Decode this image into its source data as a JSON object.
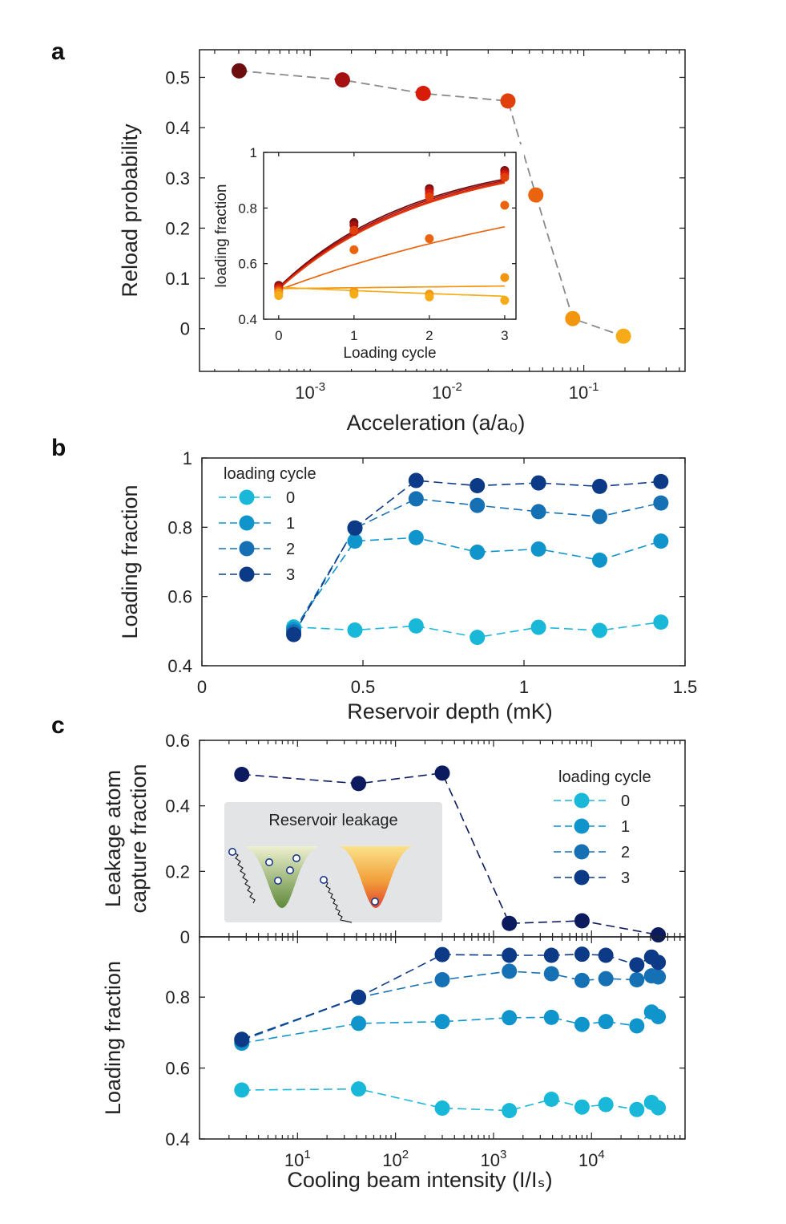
{
  "panel_labels": {
    "a": "a",
    "b": "b",
    "c": "c"
  },
  "chart_data": [
    {
      "id": "a-main",
      "type": "scatter",
      "xscale": "log",
      "xlim": [
        0.000155,
        0.55
      ],
      "ylim": [
        -0.085,
        0.555
      ],
      "xlabel": "Acceleration (a/a₀)",
      "ylabel": "Reload probability",
      "xticks": [
        {
          "v": 0.001,
          "b": "10",
          "e": "-3"
        },
        {
          "v": 0.01,
          "b": "10",
          "e": "-2"
        },
        {
          "v": 0.1,
          "b": "10",
          "e": "-1"
        }
      ],
      "yticks": [
        {
          "v": 0,
          "t": "0"
        },
        {
          "v": 0.1,
          "t": "0.1"
        },
        {
          "v": 0.2,
          "t": "0.2"
        },
        {
          "v": 0.3,
          "t": "0.3"
        },
        {
          "v": 0.4,
          "t": "0.4"
        },
        {
          "v": 0.5,
          "t": "0.5"
        }
      ],
      "points": [
        {
          "x": 0.000302,
          "y": 0.513,
          "color": "#6e0d0d"
        },
        {
          "x": 0.00172,
          "y": 0.495,
          "color": "#a51010"
        },
        {
          "x": 0.0067,
          "y": 0.468,
          "color": "#d81c0a"
        },
        {
          "x": 0.0279,
          "y": 0.453,
          "color": "#e0400c"
        },
        {
          "x": 0.0446,
          "y": 0.266,
          "color": "#ea6410"
        },
        {
          "x": 0.083,
          "y": 0.02,
          "color": "#f3960f"
        },
        {
          "x": 0.195,
          "y": -0.015,
          "color": "#f5ac18"
        }
      ]
    },
    {
      "id": "a-inset",
      "type": "scatter",
      "xlim": [
        -0.2,
        3.15
      ],
      "ylim": [
        0.4,
        1.0
      ],
      "xlabel": "Loading cycle",
      "ylabel": "loading fraction",
      "xticks": [
        {
          "v": 0,
          "t": "0"
        },
        {
          "v": 1,
          "t": "1"
        },
        {
          "v": 2,
          "t": "2"
        },
        {
          "v": 3,
          "t": "3"
        }
      ],
      "yticks": [
        {
          "v": 0.4,
          "t": "0.4"
        },
        {
          "v": 0.6,
          "t": "0.6"
        },
        {
          "v": 0.8,
          "t": "0.8"
        },
        {
          "v": 1.0,
          "t": "1"
        }
      ],
      "x": [
        0,
        1,
        2,
        3
      ],
      "series": [
        {
          "color": "#6e0d0d",
          "values": [
            0.522,
            0.748,
            0.87,
            0.935
          ],
          "fit": [
            0.515,
            1.0,
            0.54
          ]
        },
        {
          "color": "#a51010",
          "values": [
            0.518,
            0.738,
            0.864,
            0.93
          ],
          "fit": [
            0.512,
            1.0,
            0.525
          ]
        },
        {
          "color": "#d81c0a",
          "values": [
            0.512,
            0.716,
            0.852,
            0.92
          ],
          "fit": [
            0.51,
            1.0,
            0.51
          ]
        },
        {
          "color": "#e0400c",
          "values": [
            0.505,
            0.72,
            0.84,
            0.91
          ],
          "fit": [
            0.508,
            1.0,
            0.5
          ]
        },
        {
          "color": "#ea6410",
          "values": [
            0.5,
            0.65,
            0.69,
            0.81
          ],
          "fit": [
            0.505,
            1.0,
            0.205
          ]
        },
        {
          "color": "#f3960f",
          "values": [
            0.495,
            0.5,
            0.49,
            0.55
          ],
          "fit": [
            0.51,
            1.0,
            0.0065
          ]
        },
        {
          "color": "#f5ac18",
          "values": [
            0.485,
            0.49,
            0.48,
            0.468
          ],
          "fit": [
            0.515,
            0.4,
            0.11
          ]
        }
      ]
    },
    {
      "id": "b",
      "type": "line",
      "xscale": "linear",
      "xlim": [
        0,
        1.5
      ],
      "ylim": [
        0.4,
        1.0
      ],
      "xlabel": "Reservoir depth (mK)",
      "ylabel": "Loading fraction",
      "xticks": [
        {
          "v": 0,
          "t": "0"
        },
        {
          "v": 0.5,
          "t": "0.5"
        },
        {
          "v": 1,
          "t": "1"
        },
        {
          "v": 1.5,
          "t": "1.5"
        }
      ],
      "yticks": [
        {
          "v": 0.4,
          "t": "0.4"
        },
        {
          "v": 0.6,
          "t": "0.6"
        },
        {
          "v": 0.8,
          "t": "0.8"
        },
        {
          "v": 1.0,
          "t": "1"
        }
      ],
      "legend_title": "loading cycle",
      "x": [
        0.285,
        0.475,
        0.665,
        0.855,
        1.045,
        1.235,
        1.425
      ],
      "series": [
        {
          "name": "0",
          "color": "#1ab8d8",
          "values": [
            0.512,
            0.503,
            0.515,
            0.482,
            0.511,
            0.502,
            0.526
          ]
        },
        {
          "name": "1",
          "color": "#0f94cc",
          "values": [
            0.505,
            0.76,
            0.77,
            0.728,
            0.737,
            0.705,
            0.76
          ]
        },
        {
          "name": "2",
          "color": "#1670b4",
          "values": [
            0.498,
            0.797,
            0.882,
            0.863,
            0.845,
            0.831,
            0.87
          ]
        },
        {
          "name": "3",
          "color": "#0d3a86",
          "values": [
            0.49,
            0.798,
            0.935,
            0.92,
            0.928,
            0.918,
            0.932
          ]
        }
      ]
    },
    {
      "id": "c-top",
      "type": "line",
      "xscale": "log",
      "xlim": [
        1.0,
        90000
      ],
      "ylim": [
        0,
        0.6
      ],
      "ylabel": [
        "Leakage atom",
        "capture fraction"
      ],
      "yticks": [
        {
          "v": 0,
          "t": "0"
        },
        {
          "v": 0.2,
          "t": "0.2"
        },
        {
          "v": 0.4,
          "t": "0.4"
        },
        {
          "v": 0.6,
          "t": "0.6"
        }
      ],
      "legend_title": "loading cycle",
      "legend_entries": [
        {
          "name": "0",
          "color": "#1ab8d8"
        },
        {
          "name": "1",
          "color": "#0f94cc"
        },
        {
          "name": "2",
          "color": "#1670b4"
        },
        {
          "name": "3",
          "color": "#0d3a86"
        }
      ],
      "series": [
        {
          "name": "capture",
          "color": "#0c1b5e",
          "x": [
            2.7,
            42,
            300,
            1450,
            8000,
            48000
          ],
          "values": [
            0.496,
            0.468,
            0.5,
            0.041,
            0.049,
            0.006
          ]
        }
      ],
      "inset_title": "Reservoir leakage"
    },
    {
      "id": "c-bottom",
      "type": "line",
      "xscale": "log",
      "xlim": [
        1.0,
        90000
      ],
      "ylim": [
        0.4,
        0.97
      ],
      "xlabel": "Cooling beam intensity (I/Iₛ)",
      "ylabel": "Loading fraction",
      "xticks": [
        {
          "v": 10,
          "b": "10",
          "e": "1"
        },
        {
          "v": 100,
          "b": "10",
          "e": "2"
        },
        {
          "v": 1000,
          "b": "10",
          "e": "3"
        },
        {
          "v": 10000,
          "b": "10",
          "e": "4"
        }
      ],
      "yticks": [
        {
          "v": 0.4,
          "t": "0.4"
        },
        {
          "v": 0.6,
          "t": "0.6"
        },
        {
          "v": 0.8,
          "t": "0.8"
        }
      ],
      "x": [
        2.7,
        42,
        300,
        1450,
        3900,
        8000,
        14000,
        29000,
        41000,
        48000
      ],
      "series": [
        {
          "name": "0",
          "color": "#1ab8d8",
          "values": [
            0.538,
            0.541,
            0.487,
            0.48,
            0.512,
            0.49,
            0.497,
            0.483,
            0.503,
            0.488
          ]
        },
        {
          "name": "1",
          "color": "#0f94cc",
          "values": [
            0.67,
            0.726,
            0.731,
            0.742,
            0.743,
            0.723,
            0.731,
            0.719,
            0.758,
            0.745
          ]
        },
        {
          "name": "2",
          "color": "#1670b4",
          "values": [
            0.678,
            0.799,
            0.849,
            0.873,
            0.866,
            0.847,
            0.852,
            0.849,
            0.86,
            0.857
          ]
        },
        {
          "name": "3",
          "color": "#0d3a86",
          "values": [
            0.681,
            0.8,
            0.92,
            0.918,
            0.918,
            0.921,
            0.918,
            0.891,
            0.913,
            0.898
          ]
        }
      ]
    }
  ]
}
